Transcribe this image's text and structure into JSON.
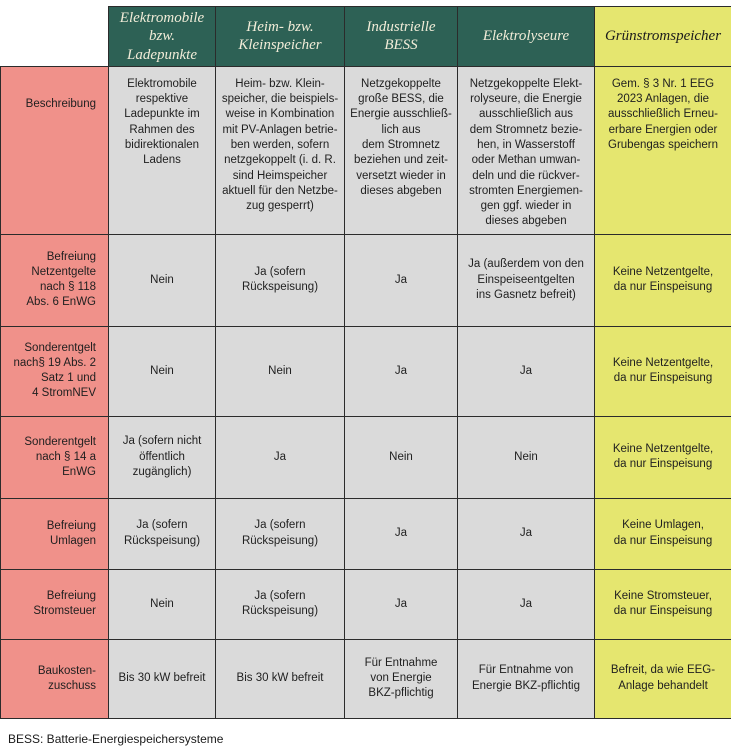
{
  "table": {
    "columns": [
      {
        "label": "Elektromobile\nbzw. Ladepunkte"
      },
      {
        "label": "Heim- bzw.\nKleinspeicher"
      },
      {
        "label": "Industrielle BESS"
      },
      {
        "label": "Elektrolyseure"
      },
      {
        "label": "Grünstromspeicher"
      }
    ],
    "rows": [
      {
        "label": "Beschreibung",
        "cells": [
          "Elektromobile\nrespektive\nLadepunkte im\nRahmen des\nbidirektionalen\nLadens",
          "Heim- bzw. Klein-\nspeicher, die beispiels-\nweise in Kombination\nmit PV-Anlagen betrie-\nben werden, sofern\nnetzgekoppelt (i. d. R.\nsind Heimspeicher\naktuell für den Netzbe-\nzug gesperrt)",
          "Netzgekoppelte\ngroße BESS, die\nEnergie ausschließ-\nlich aus\ndem Stromnetz\nbeziehen und zeit-\nversetzt wieder in\ndieses abgeben",
          "Netzgekoppelte Elekt-\nrolyseure, die Energie\nausschließlich aus\ndem Stromnetz bezie-\nhen, in Wasserstoff\noder Methan umwan-\ndeln und die rückver-\nstromten Energiemen-\ngen ggf. wieder in\ndieses abgeben",
          "Gem. § 3 Nr. 1 EEG\n2023 Anlagen, die\nausschließlich Erneu-\nerbare Energien oder\nGrubengas speichern"
        ]
      },
      {
        "label": "Befreiung\nNetzentgelte\nnach § 118\nAbs. 6 EnWG",
        "cells": [
          "Nein",
          "Ja (sofern\nRückspeisung)",
          "Ja",
          "Ja (außerdem von den\nEinspeiseentgelten\nins Gasnetz befreit)",
          "Keine Netzentgelte,\nda nur Einspeisung"
        ]
      },
      {
        "label": "Sonderentgelt\nnach§ 19 Abs. 2\nSatz 1 und\n4 StromNEV",
        "cells": [
          "Nein",
          "Nein",
          "Ja",
          "Ja",
          "Keine Netzentgelte,\nda nur Einspeisung"
        ]
      },
      {
        "label": "Sonderentgelt\nnach § 14 a\nEnWG",
        "cells": [
          "Ja (sofern nicht\nöffentlich\nzugänglich)",
          "Ja",
          "Nein",
          "Nein",
          "Keine Netzentgelte,\nda nur Einspeisung"
        ]
      },
      {
        "label": "Befreiung\nUmlagen",
        "cells": [
          "Ja (sofern\nRückspeisung)",
          "Ja (sofern\nRückspeisung)",
          "Ja",
          "Ja",
          "Keine Umlagen,\nda nur Einspeisung"
        ]
      },
      {
        "label": "Befreiung\nStromsteuer",
        "cells": [
          "Nein",
          "Ja (sofern\nRückspeisung)",
          "Ja",
          "Ja",
          "Keine Stromsteuer,\nda nur Einspeisung"
        ]
      },
      {
        "label": "Baukosten-\nzuschuss",
        "cells": [
          "Bis 30 kW befreit",
          "Bis 30 kW befreit",
          "Für Entnahme\nvon Energie\nBKZ-pflichtig",
          "Für Entnahme von\nEnergie BKZ-pflichtig",
          "Befreit, da wie EEG-\nAnlage behandelt"
        ]
      }
    ],
    "footnote": "BESS: Batterie-Energiespeichersysteme"
  },
  "colors": {
    "header_teal": "#2D6155",
    "header_text_cream": "#F1ECD8",
    "row_label_pink": "#F0918A",
    "cell_gray": "#DADADA",
    "highlight_yellow": "#E5E66F",
    "border": "#2b2b2b"
  }
}
